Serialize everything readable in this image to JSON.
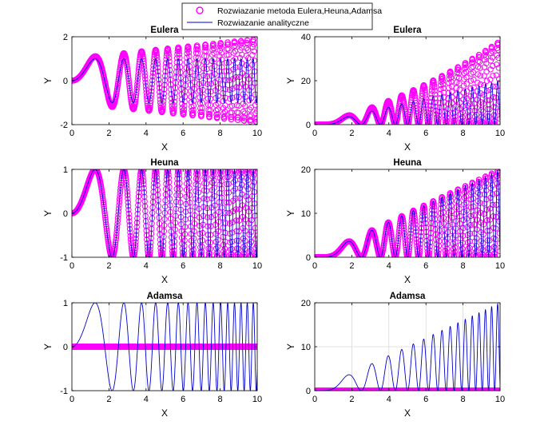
{
  "legend": {
    "placement": "top-center",
    "entries": [
      {
        "label": "Rozwiazanie metoda Eulera,Heuna,Adamsa",
        "marker": "circle",
        "color": "#ff00ff"
      },
      {
        "label": "Rozwiazanie analityczne",
        "marker": "line",
        "color": "#0000cc"
      }
    ]
  },
  "colors": {
    "numeric": "#ff00ff",
    "analytic": "#0000cc"
  },
  "chart_data": [
    {
      "type": "line",
      "title": "Eulera",
      "xlabel": "X",
      "ylabel": "Y",
      "xlim": [
        0,
        10
      ],
      "ylim": [
        -2,
        2
      ],
      "xticks": [
        "0",
        "2",
        "4",
        "6",
        "8",
        "10"
      ],
      "yticks": [
        "-2",
        "0",
        "2"
      ],
      "grid": false,
      "series": [
        {
          "name": "Rozwiazanie metoda Eulera,Heuna,Adamsa",
          "kind": "markers",
          "function": "growing chirp",
          "amplitude_at_x10": 1.9
        },
        {
          "name": "Rozwiazanie analityczne",
          "kind": "line",
          "function": "sin(x^2)"
        }
      ]
    },
    {
      "type": "line",
      "title": "Eulera",
      "xlabel": "X",
      "ylabel": "Y",
      "xlim": [
        0,
        10
      ],
      "ylim": [
        0,
        40
      ],
      "xticks": [
        "0",
        "2",
        "4",
        "6",
        "8",
        "10"
      ],
      "yticks": [
        "0",
        "20",
        "40"
      ],
      "grid": false,
      "series": [
        {
          "name": "Rozwiazanie metoda Eulera,Heuna,Adamsa",
          "kind": "markers",
          "function": "growing x-amplitude chirp",
          "max_at_x10": 38
        },
        {
          "name": "Rozwiazanie analityczne",
          "kind": "line",
          "function": "x*(1-cos(x^2))",
          "max_at_x10": 20
        }
      ]
    },
    {
      "type": "line",
      "title": "Heuna",
      "xlabel": "X",
      "ylabel": "Y",
      "xlim": [
        0,
        10
      ],
      "ylim": [
        -1,
        1
      ],
      "xticks": [
        "0",
        "2",
        "4",
        "6",
        "8",
        "10"
      ],
      "yticks": [
        "-1",
        "0",
        "1"
      ],
      "grid": false,
      "series": [
        {
          "name": "Rozwiazanie metoda Eulera,Heuna,Adamsa",
          "kind": "markers",
          "function": "sin(x^2)"
        },
        {
          "name": "Rozwiazanie analityczne",
          "kind": "line",
          "function": "sin(x^2)"
        }
      ]
    },
    {
      "type": "line",
      "title": "Heuna",
      "xlabel": "X",
      "ylabel": "Y",
      "xlim": [
        0,
        10
      ],
      "ylim": [
        0,
        20
      ],
      "xticks": [
        "0",
        "2",
        "4",
        "6",
        "8",
        "10"
      ],
      "yticks": [
        "0",
        "10",
        "20"
      ],
      "grid": false,
      "series": [
        {
          "name": "Rozwiazanie metoda Eulera,Heuna,Adamsa",
          "kind": "markers",
          "function": "x*(1-cos(x^2))"
        },
        {
          "name": "Rozwiazanie analityczne",
          "kind": "line",
          "function": "x*(1-cos(x^2))"
        }
      ]
    },
    {
      "type": "line",
      "title": "Adamsa",
      "xlabel": "X",
      "ylabel": "Y",
      "xlim": [
        0,
        10
      ],
      "ylim": [
        -1,
        1
      ],
      "xticks": [
        "0",
        "2",
        "4",
        "6",
        "8",
        "10"
      ],
      "yticks": [
        "-1",
        "0",
        "1"
      ],
      "grid": true,
      "series": [
        {
          "name": "Rozwiazanie metoda Eulera,Heuna,Adamsa",
          "kind": "markers",
          "function": "constant",
          "value": 0
        },
        {
          "name": "Rozwiazanie analityczne",
          "kind": "line",
          "function": "sin(x^2)"
        }
      ]
    },
    {
      "type": "line",
      "title": "Adamsa",
      "xlabel": "X",
      "ylabel": "Y",
      "xlim": [
        0,
        10
      ],
      "ylim": [
        0,
        20
      ],
      "xticks": [
        "0",
        "2",
        "4",
        "6",
        "8",
        "10"
      ],
      "yticks": [
        "0",
        "10",
        "20"
      ],
      "grid": true,
      "series": [
        {
          "name": "Rozwiazanie metoda Eulera,Heuna,Adamsa",
          "kind": "markers",
          "function": "constant",
          "value": 0
        },
        {
          "name": "Rozwiazanie analityczne",
          "kind": "line",
          "function": "x*(1-cos(x^2))"
        }
      ]
    }
  ]
}
